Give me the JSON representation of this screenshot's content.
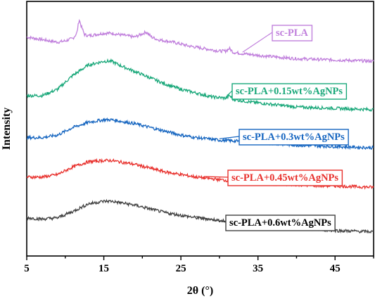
{
  "chart_data": {
    "type": "line",
    "title": "",
    "xlabel": "2θ (°)",
    "ylabel": "Intensity",
    "xlim": [
      5,
      50
    ],
    "x_ticks": [
      5,
      15,
      25,
      35,
      45
    ],
    "y_ticks": [],
    "grid": false,
    "legend_placement": "inline labels at right of each curve",
    "series": [
      {
        "name": "sc-PLA",
        "color": "#c07fdc",
        "x": [
          5,
          7,
          9,
          10,
          11,
          11.5,
          11.8,
          12.1,
          12.5,
          13,
          14,
          15,
          16,
          17,
          18,
          19,
          19.8,
          20.5,
          21.2,
          22,
          24,
          26,
          28,
          30,
          30.8,
          31.3,
          31.8,
          33,
          36,
          40,
          45,
          50
        ],
        "y": [
          0.86,
          0.85,
          0.84,
          0.845,
          0.855,
          0.875,
          0.93,
          0.9,
          0.87,
          0.865,
          0.87,
          0.875,
          0.875,
          0.87,
          0.865,
          0.86,
          0.87,
          0.88,
          0.86,
          0.85,
          0.84,
          0.825,
          0.815,
          0.805,
          0.805,
          0.815,
          0.8,
          0.795,
          0.785,
          0.775,
          0.77,
          0.765
        ]
      },
      {
        "name": "sc-PLA+0.15wt%AgNPs",
        "color": "#1aa87a",
        "x": [
          5,
          7,
          9,
          11,
          13,
          15,
          16,
          17,
          19,
          21,
          23,
          25,
          27,
          29,
          30.8,
          31.3,
          31.8,
          34,
          37,
          40,
          45,
          50
        ],
        "y": [
          0.63,
          0.63,
          0.655,
          0.71,
          0.75,
          0.765,
          0.765,
          0.75,
          0.725,
          0.7,
          0.675,
          0.655,
          0.64,
          0.625,
          0.62,
          0.63,
          0.615,
          0.605,
          0.595,
          0.585,
          0.58,
          0.575
        ]
      },
      {
        "name": "sc-PLA+0.3wt%AgNPs",
        "color": "#1565c0",
        "x": [
          5,
          7,
          9,
          11,
          13,
          15,
          16,
          17,
          19,
          21,
          23,
          25,
          27,
          30,
          33,
          36,
          40,
          45,
          50
        ],
        "y": [
          0.465,
          0.465,
          0.475,
          0.505,
          0.525,
          0.535,
          0.535,
          0.53,
          0.52,
          0.505,
          0.49,
          0.475,
          0.465,
          0.455,
          0.45,
          0.445,
          0.435,
          0.43,
          0.425
        ]
      },
      {
        "name": "sc-PLA+0.45wt%AgNPs",
        "color": "#e8302c",
        "x": [
          5,
          7,
          9,
          11,
          13,
          15,
          16,
          17,
          19,
          21,
          23,
          25,
          27,
          30,
          33,
          36,
          40,
          45,
          50
        ],
        "y": [
          0.31,
          0.31,
          0.32,
          0.35,
          0.37,
          0.375,
          0.375,
          0.37,
          0.36,
          0.345,
          0.33,
          0.32,
          0.31,
          0.3,
          0.29,
          0.285,
          0.28,
          0.275,
          0.27
        ]
      },
      {
        "name": "sc-PLA+0.6wt%AgNPs",
        "color": "#404040",
        "x": [
          5,
          7,
          9,
          11,
          13,
          15,
          16,
          17,
          19,
          21,
          23,
          25,
          27,
          30,
          33,
          36,
          40,
          45,
          50
        ],
        "y": [
          0.15,
          0.145,
          0.15,
          0.175,
          0.205,
          0.215,
          0.215,
          0.21,
          0.2,
          0.185,
          0.17,
          0.16,
          0.15,
          0.14,
          0.13,
          0.12,
          0.11,
          0.1,
          0.095
        ]
      }
    ]
  }
}
